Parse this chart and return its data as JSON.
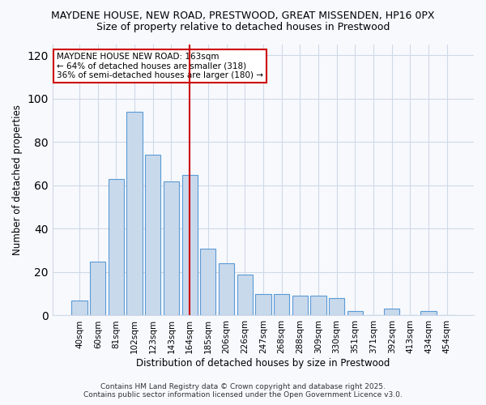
{
  "title_line1": "MAYDENE HOUSE, NEW ROAD, PRESTWOOD, GREAT MISSENDEN, HP16 0PX",
  "title_line2": "Size of property relative to detached houses in Prestwood",
  "xlabel": "Distribution of detached houses by size in Prestwood",
  "ylabel": "Number of detached properties",
  "categories": [
    "40sqm",
    "60sqm",
    "81sqm",
    "102sqm",
    "123sqm",
    "143sqm",
    "164sqm",
    "185sqm",
    "206sqm",
    "226sqm",
    "247sqm",
    "268sqm",
    "288sqm",
    "309sqm",
    "330sqm",
    "351sqm",
    "371sqm",
    "392sqm",
    "413sqm",
    "434sqm",
    "454sqm"
  ],
  "values": [
    7,
    25,
    63,
    94,
    74,
    62,
    65,
    31,
    24,
    19,
    10,
    10,
    9,
    9,
    8,
    2,
    0,
    3,
    0,
    2,
    0
  ],
  "bar_color": "#c9d9ec",
  "bar_edge_color": "#5b9bd5",
  "grid_color": "#d0d8e8",
  "bg_color": "#f7f9fd",
  "red_line_index": 6,
  "annotation_title": "MAYDENE HOUSE NEW ROAD: 163sqm",
  "annotation_line2": "← 64% of detached houses are smaller (318)",
  "annotation_line3": "36% of semi-detached houses are larger (180) →",
  "annotation_box_color": "#ffffff",
  "annotation_border_color": "#cc0000",
  "ylim": [
    0,
    125
  ],
  "yticks": [
    0,
    20,
    40,
    60,
    80,
    100,
    120
  ],
  "footer_line1": "Contains HM Land Registry data © Crown copyright and database right 2025.",
  "footer_line2": "Contains public sector information licensed under the Open Government Licence v3.0."
}
